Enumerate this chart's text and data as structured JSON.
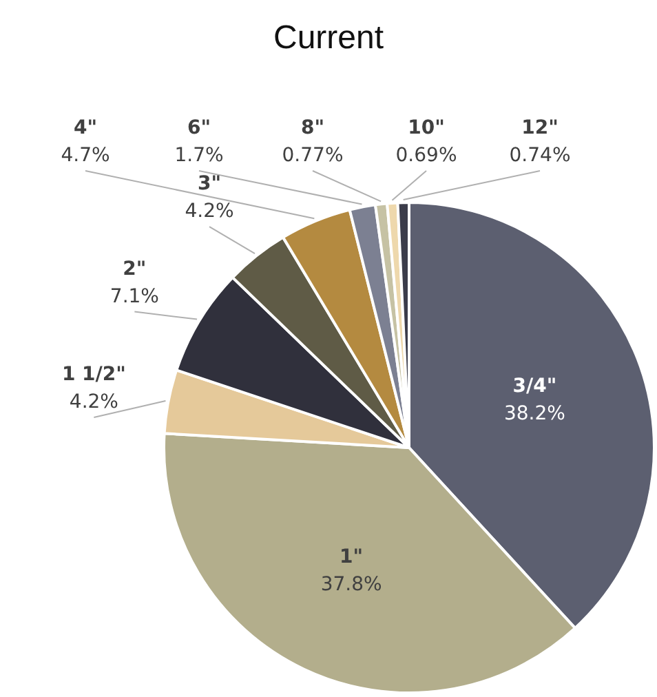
{
  "chart_data": {
    "type": "pie",
    "title": "Current",
    "categories": [
      "3/4\"",
      "1\"",
      "1 1/2\"",
      "2\"",
      "3\"",
      "4\"",
      "6\"",
      "8\"",
      "10\"",
      "12\""
    ],
    "values": [
      38.2,
      37.8,
      4.2,
      7.1,
      4.2,
      4.7,
      1.7,
      0.77,
      0.69,
      0.74
    ],
    "value_labels": [
      "38.2%",
      "37.8%",
      "4.2%",
      "7.1%",
      "4.2%",
      "4.7%",
      "1.7%",
      "0.77%",
      "0.69%",
      "0.74%"
    ],
    "colors": [
      "#5c5f70",
      "#b3ae8c",
      "#e5c99a",
      "#30303c",
      "#5f5b46",
      "#b48a40",
      "#7c8092",
      "#c6c2a4",
      "#eed8ac",
      "#3b3c4a"
    ],
    "legend": false
  }
}
